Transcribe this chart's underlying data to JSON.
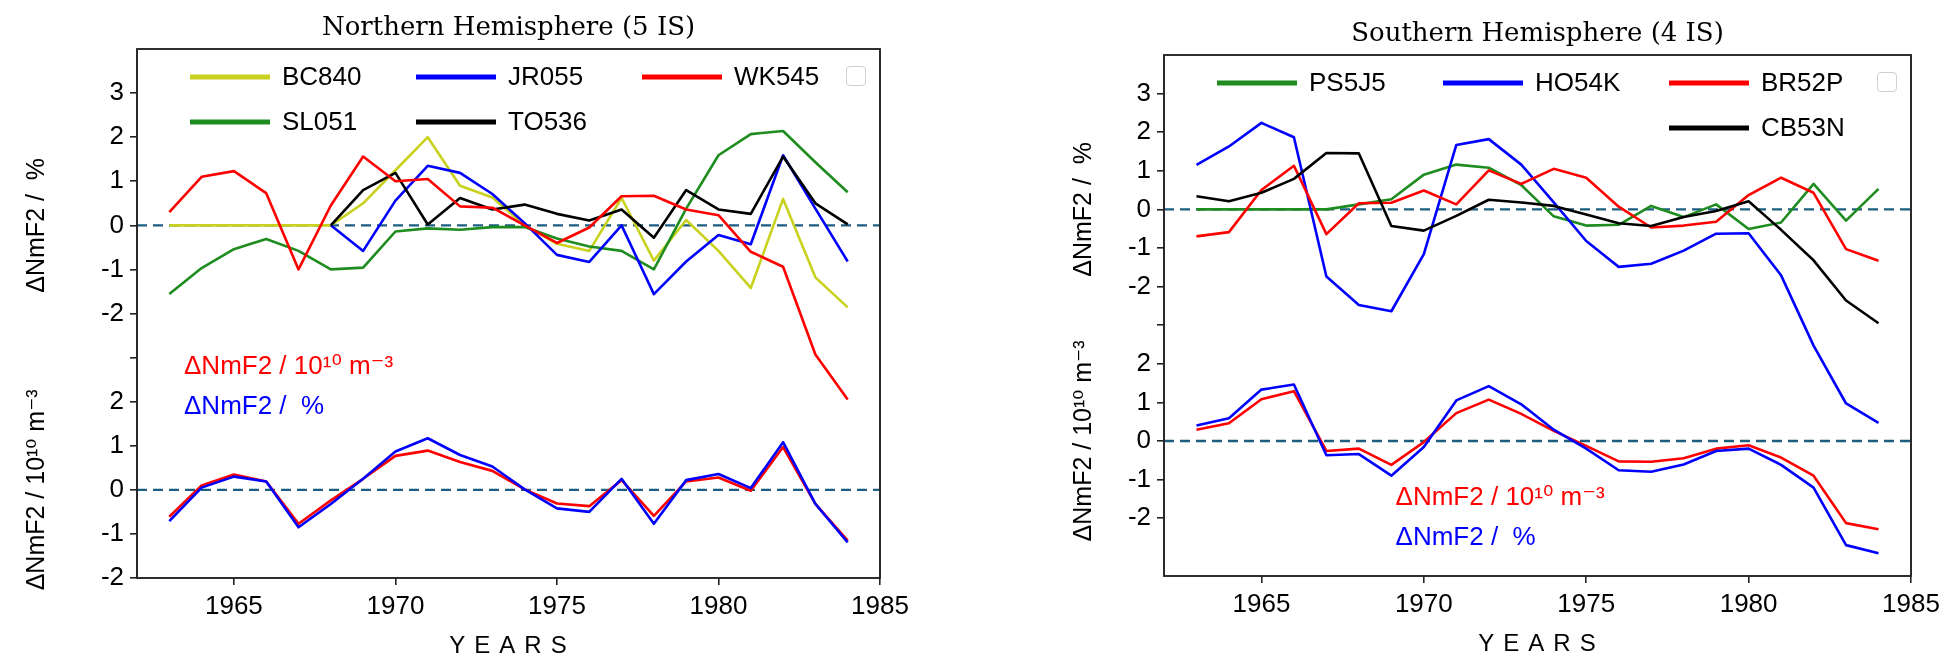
{
  "chart_data": [
    {
      "type": "line",
      "title": "Northern Hemisphere (5 IS)",
      "ylabel": "ΔNmF2 /  %",
      "x": [
        1963,
        1964,
        1965,
        1966,
        1967,
        1968,
        1969,
        1970,
        1971,
        1972,
        1973,
        1974,
        1975,
        1976,
        1977,
        1978,
        1979,
        1980,
        1981,
        1982,
        1983,
        1984
      ],
      "series": [
        {
          "name": "BC840",
          "color": "#c8d21e",
          "values": [
            0,
            0,
            0,
            0,
            0,
            0,
            0.5,
            1.25,
            2.0,
            0.9,
            0.63,
            0,
            -0.42,
            -0.58,
            0.62,
            -0.8,
            0.12,
            -0.58,
            -1.42,
            0.6,
            -1.18,
            -1.86
          ]
        },
        {
          "name": "SL051",
          "color": "#1e8c1e",
          "values": [
            -1.56,
            -0.97,
            -0.54,
            -0.31,
            -0.58,
            -1.0,
            -0.96,
            -0.14,
            -0.07,
            -0.1,
            -0.04,
            -0.04,
            -0.3,
            -0.48,
            -0.58,
            -1.0,
            0.38,
            1.59,
            2.07,
            2.14,
            1.43,
            0.75
          ]
        },
        {
          "name": "JR055",
          "color": "#0000ff",
          "values": [
            null,
            null,
            null,
            null,
            null,
            0,
            -0.58,
            0.56,
            1.35,
            1.19,
            0.71,
            0.05,
            -0.67,
            -0.83,
            0,
            -1.56,
            -0.82,
            -0.22,
            -0.43,
            1.59,
            0.38,
            -0.82
          ]
        },
        {
          "name": "TO536",
          "color": "#000000",
          "values": [
            null,
            null,
            null,
            null,
            null,
            0,
            0.8,
            1.19,
            0.02,
            0.62,
            0.36,
            0.47,
            0.26,
            0.11,
            0.36,
            -0.28,
            0.8,
            0.36,
            0.26,
            1.56,
            0.5,
            0.02
          ]
        },
        {
          "name": "WK545",
          "color": "#ff0000",
          "values": [
            0.3,
            1.1,
            1.23,
            0.73,
            -1.0,
            0.45,
            1.56,
            1.0,
            1.05,
            0.43,
            0.4,
            0,
            -0.4,
            -0.05,
            0.66,
            0.67,
            0.36,
            0.23,
            -0.6,
            -0.94,
            -2.93,
            -3.95
          ]
        }
      ],
      "xlim": [
        1962,
        1985
      ],
      "xticks": [
        1965,
        1970,
        1975,
        1980,
        1985
      ],
      "ylim": [
        -8,
        4
      ],
      "yticks": [
        {
          "value": -3,
          "label": null
        },
        -2,
        -1,
        0,
        1,
        2,
        3
      ],
      "ref_lines": [
        {
          "axis": "y",
          "value": 0,
          "color": "#1b5e80",
          "line_style": "dashed"
        }
      ],
      "tick_labels": "y",
      "legend": "top",
      "grid": false,
      "marker": "none",
      "line_style": "solid"
    },
    {
      "type": "line",
      "ylabel": "ΔNmF2 / 10¹⁰ m⁻³",
      "xlabel": "YEARS",
      "x": [
        1963,
        1964,
        1965,
        1966,
        1967,
        1968,
        1969,
        1970,
        1971,
        1972,
        1973,
        1974,
        1975,
        1976,
        1977,
        1978,
        1979,
        1980,
        1981,
        1982,
        1983,
        1984
      ],
      "series": [
        {
          "name": "ΔNmF2 / 10¹⁰ m⁻³",
          "color": "#ff0000",
          "values": [
            -0.61,
            0.1,
            0.35,
            0.19,
            -0.77,
            -0.24,
            0.25,
            0.77,
            0.89,
            0.63,
            0.43,
            0.01,
            -0.31,
            -0.37,
            0.22,
            -0.59,
            0.19,
            0.28,
            -0.02,
            0.97,
            -0.32,
            -1.15
          ]
        },
        {
          "name": "ΔNmF2 /  %",
          "color": "#0000ff",
          "values": [
            -0.71,
            0.05,
            0.3,
            0.19,
            -0.85,
            -0.32,
            0.25,
            0.87,
            1.17,
            0.79,
            0.53,
            0.01,
            -0.42,
            -0.5,
            0.25,
            -0.77,
            0.22,
            0.36,
            0.04,
            1.08,
            -0.32,
            -1.19
          ]
        }
      ],
      "xlim": [
        1962,
        1985
      ],
      "xticks": [
        1965,
        1970,
        1975,
        1980,
        1985
      ],
      "ylim": [
        -2,
        10
      ],
      "yticks": [
        -2,
        -1,
        0,
        1,
        2
      ],
      "ref_lines": [
        {
          "axis": "y",
          "value": 0,
          "color": "#1b5e80",
          "line_style": "dashed"
        }
      ],
      "legend": "left",
      "grid": false,
      "marker": "none",
      "line_style": "solid"
    },
    {
      "type": "line",
      "title": "Southern Hemisphere (4 IS)",
      "ylabel": "ΔNmF2 /  %",
      "x": [
        1963,
        1964,
        1965,
        1966,
        1967,
        1968,
        1969,
        1970,
        1971,
        1972,
        1973,
        1974,
        1975,
        1976,
        1977,
        1978,
        1979,
        1980,
        1981,
        1982,
        1983,
        1984
      ],
      "series": [
        {
          "name": "PS5J5",
          "color": "#1e8c1e",
          "values": [
            0,
            0,
            0,
            0,
            0,
            0.13,
            0.26,
            0.9,
            1.16,
            1.08,
            0.63,
            -0.18,
            -0.42,
            -0.4,
            0.09,
            -0.2,
            0.13,
            -0.51,
            -0.34,
            0.66,
            -0.29,
            0.53
          ]
        },
        {
          "name": "HO54K",
          "color": "#0000ff",
          "values": [
            1.15,
            1.63,
            2.24,
            1.87,
            -1.74,
            -2.48,
            -2.64,
            -1.16,
            1.67,
            1.82,
            1.16,
            0.18,
            -0.82,
            -1.49,
            -1.41,
            -1.07,
            -0.63,
            -0.62,
            -1.71,
            -3.53,
            -5.03,
            -5.53
          ]
        },
        {
          "name": "BR52P",
          "color": "#ff0000",
          "values": [
            -0.7,
            -0.59,
            0.5,
            1.13,
            -0.64,
            0.16,
            0.17,
            0.49,
            0.13,
            1.01,
            0.66,
            1.05,
            0.82,
            0.07,
            -0.47,
            -0.42,
            -0.32,
            0.37,
            0.82,
            0.43,
            -1.03,
            -1.33
          ]
        },
        {
          "name": "CB53N",
          "color": "#000000",
          "values": [
            0.34,
            0.21,
            0.43,
            0.79,
            1.46,
            1.45,
            -0.43,
            -0.55,
            -0.17,
            0.25,
            0.18,
            0.09,
            -0.13,
            -0.36,
            -0.43,
            -0.2,
            -0.04,
            0.21,
            -0.53,
            -1.32,
            -2.36,
            -2.95
          ]
        }
      ],
      "xlim": [
        1962,
        1985
      ],
      "xticks": [
        1965,
        1970,
        1975,
        1980,
        1985
      ],
      "ylim": [
        -9.5,
        4
      ],
      "yticks": [
        {
          "value": -3,
          "label": null
        },
        -2,
        -1,
        0,
        1,
        2,
        3
      ],
      "ref_lines": [
        {
          "axis": "y",
          "value": 0,
          "color": "#1b5e80",
          "line_style": "dashed"
        }
      ],
      "tick_labels": "y",
      "legend": "top",
      "grid": false,
      "marker": "none",
      "line_style": "solid"
    },
    {
      "type": "line",
      "ylabel": "ΔNmF2 / 10¹⁰ m⁻³",
      "xlabel": "YEARS",
      "x": [
        1963,
        1964,
        1965,
        1966,
        1967,
        1968,
        1969,
        1970,
        1971,
        1972,
        1973,
        1974,
        1975,
        1976,
        1977,
        1978,
        1979,
        1980,
        1981,
        1982,
        1983,
        1984
      ],
      "series": [
        {
          "name": "ΔNmF2 / 10¹⁰ m⁻³",
          "color": "#ff0000",
          "values": [
            0.29,
            0.46,
            1.08,
            1.29,
            -0.26,
            -0.2,
            -0.62,
            -0.03,
            0.72,
            1.07,
            0.7,
            0.26,
            -0.13,
            -0.53,
            -0.54,
            -0.45,
            -0.2,
            -0.11,
            -0.43,
            -0.9,
            -2.13,
            -2.29
          ]
        },
        {
          "name": "ΔNmF2 /  %",
          "color": "#0000ff",
          "values": [
            0.4,
            0.59,
            1.33,
            1.46,
            -0.37,
            -0.34,
            -0.9,
            -0.16,
            1.05,
            1.42,
            0.95,
            0.29,
            -0.2,
            -0.76,
            -0.8,
            -0.61,
            -0.26,
            -0.2,
            -0.62,
            -1.21,
            -2.7,
            -2.91
          ]
        }
      ],
      "xlim": [
        1962,
        1985
      ],
      "xticks": [
        1965,
        1970,
        1975,
        1980,
        1985
      ],
      "ylim": [
        -3.5,
        10
      ],
      "yticks": [
        -2,
        -1,
        0,
        1,
        2
      ],
      "ref_lines": [
        {
          "axis": "y",
          "value": 0,
          "color": "#1b5e80",
          "line_style": "dashed"
        }
      ],
      "legend": "bottom",
      "grid": false,
      "marker": "none",
      "line_style": "solid"
    }
  ]
}
